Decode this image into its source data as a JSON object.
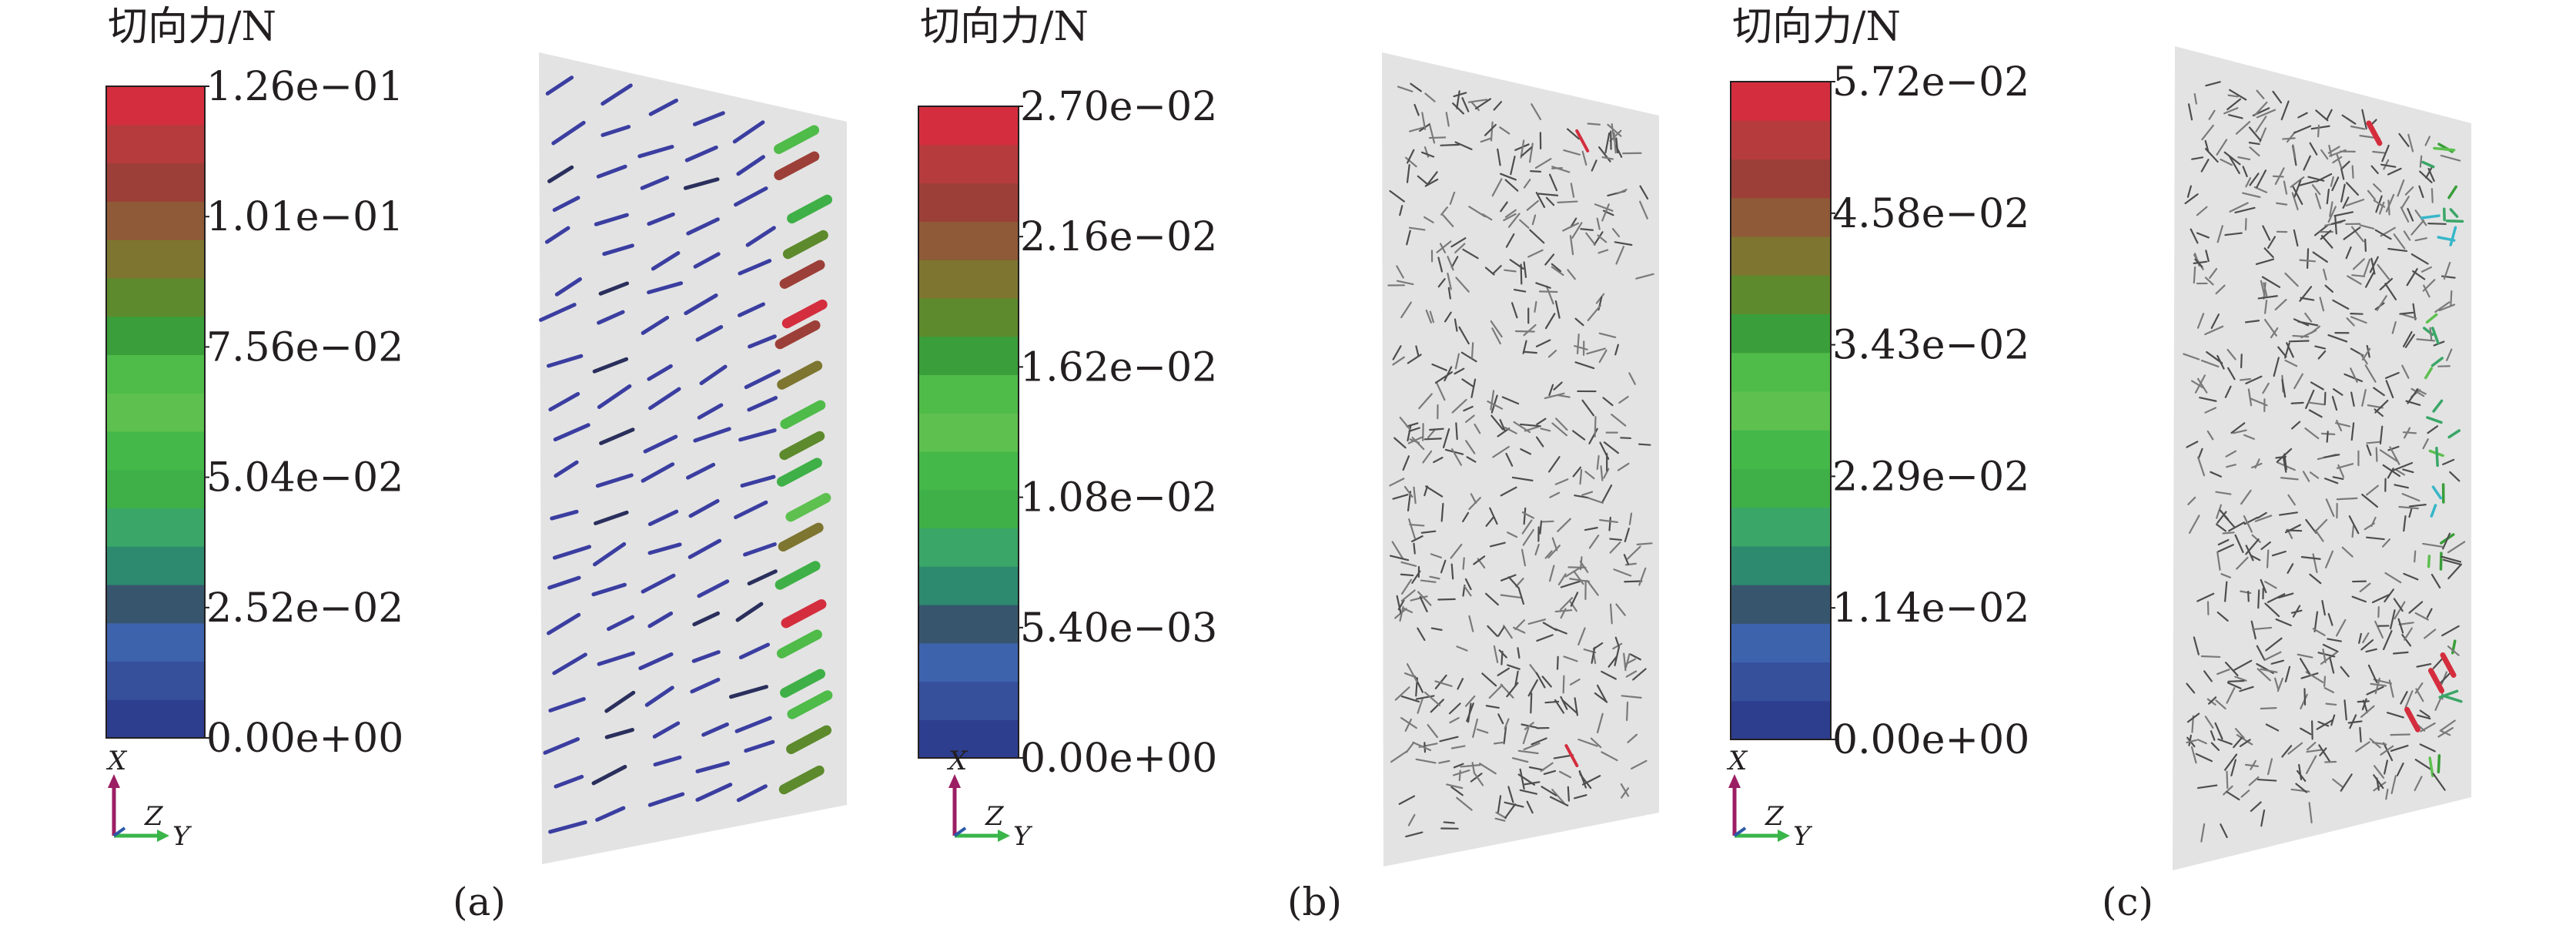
{
  "panels": [
    {
      "id": "a",
      "caption": "(a)",
      "colorbar": {
        "title": "切向力/N",
        "ticks": [
          "1.26e−01",
          "1.01e−01",
          "7.56e−02",
          "5.04e−02",
          "2.52e−02",
          "0.00e+00"
        ],
        "min": 0.0,
        "max": 0.126
      },
      "triad": {
        "x": "X",
        "y": "Y",
        "z": "Z"
      },
      "glyph_style": "thick"
    },
    {
      "id": "b",
      "caption": "(b)",
      "colorbar": {
        "title": "切向力/N",
        "ticks": [
          "2.70e−02",
          "2.16e−02",
          "1.62e−02",
          "1.08e−02",
          "5.40e−03",
          "0.00e+00"
        ],
        "min": 0.0,
        "max": 0.027
      },
      "triad": {
        "x": "X",
        "y": "Y",
        "z": "Z"
      },
      "glyph_style": "thin"
    },
    {
      "id": "c",
      "caption": "(c)",
      "colorbar": {
        "title": "切向力/N",
        "ticks": [
          "5.72e−02",
          "4.58e−02",
          "3.43e−02",
          "2.29e−02",
          "1.14e−02",
          "0.00e+00"
        ],
        "min": 0.0,
        "max": 0.0572
      },
      "triad": {
        "x": "X",
        "y": "Y",
        "z": "Z"
      },
      "glyph_style": "thin"
    }
  ],
  "colormap": [
    "#2d3e8e",
    "#36509c",
    "#3d63ad",
    "#37566e",
    "#2e8a6e",
    "#3aa667",
    "#3fb047",
    "#45b84a",
    "#5dc04f",
    "#4fbb49",
    "#3a9e3a",
    "#5d8a2c",
    "#7d7530",
    "#8f5a37",
    "#9c3f38",
    "#b63b3d",
    "#d42e3e"
  ],
  "plate_color": "#e3e3e3",
  "triad_colors": {
    "x": "#9b1e63",
    "y": "#3ab54a",
    "z": "#2b5aa8"
  }
}
